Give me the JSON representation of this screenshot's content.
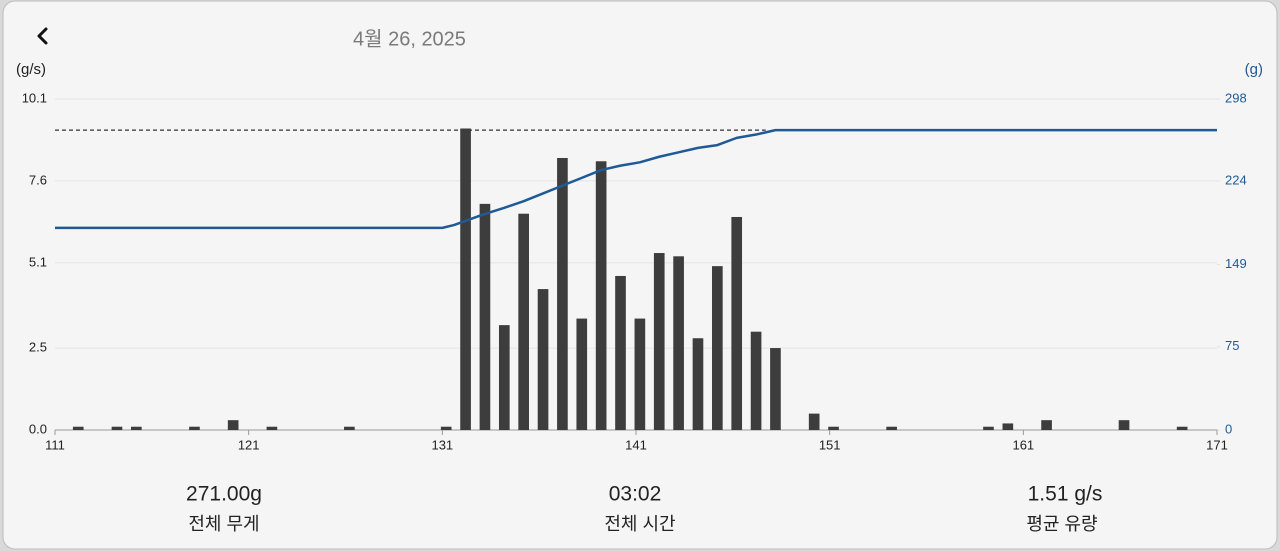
{
  "header": {
    "date": "4월 26, 2025"
  },
  "chart_data": {
    "type": "bar-line",
    "ylabel": "(g/s)",
    "y2label": "(g)",
    "xlim": [
      111,
      171
    ],
    "xticks": [
      111,
      121,
      131,
      141,
      151,
      161,
      171
    ],
    "ylim": [
      0,
      10.1
    ],
    "yticks": [
      {
        "value": 0,
        "label": "0.0"
      },
      2.5,
      5.1,
      7.6,
      10.1
    ],
    "y2lim": [
      0,
      298
    ],
    "y2ticks": [
      0,
      75,
      149,
      224,
      298
    ],
    "grid": true,
    "reference_line": {
      "axis": "y2",
      "value": 270,
      "xlim": [
        111,
        147.7
      ]
    },
    "series": [
      {
        "type": "bar",
        "axis": "y",
        "color": "#3d3d3d",
        "x": [
          112.2,
          114.2,
          115.2,
          118.2,
          120.2,
          122.2,
          126.2,
          131.2,
          132.2,
          133.2,
          134.2,
          135.2,
          136.2,
          137.2,
          138.2,
          139.2,
          140.2,
          141.2,
          142.2,
          143.2,
          144.2,
          145.2,
          146.2,
          147.2,
          148.2,
          150.2,
          151.2,
          154.2,
          159.2,
          160.2,
          162.2,
          166.2,
          169.2
        ],
        "values": [
          0.1,
          0.1,
          0.1,
          0.1,
          0.3,
          0.1,
          0.1,
          0.1,
          9.2,
          6.9,
          3.2,
          6.6,
          4.3,
          8.3,
          3.4,
          8.2,
          4.7,
          3.4,
          5.4,
          5.3,
          2.8,
          5.0,
          6.5,
          3.0,
          2.5,
          0.5,
          0.1,
          0.1,
          0.1,
          0.2,
          0.3,
          0.3,
          0.1
        ]
      },
      {
        "type": "line",
        "axis": "y2",
        "color": "#1f5a96",
        "x": [
          111,
          131,
          131.6,
          133.1,
          134.2,
          135.2,
          136.2,
          137.2,
          138.2,
          139.2,
          140.2,
          141.2,
          142.2,
          143.2,
          144.2,
          145.2,
          146.2,
          147.2,
          148.2,
          171
        ],
        "values": [
          182,
          182,
          184.5,
          194,
          200,
          206,
          213,
          220,
          227,
          234,
          238,
          241,
          246,
          250,
          254,
          256.5,
          263,
          266,
          270,
          270
        ]
      }
    ]
  },
  "stats": [
    {
      "value": "271.00g",
      "label": "전체 무게"
    },
    {
      "value": "03:02",
      "label": "전체 시간"
    },
    {
      "value": "1.51 g/s",
      "label": "평균 유량"
    }
  ]
}
